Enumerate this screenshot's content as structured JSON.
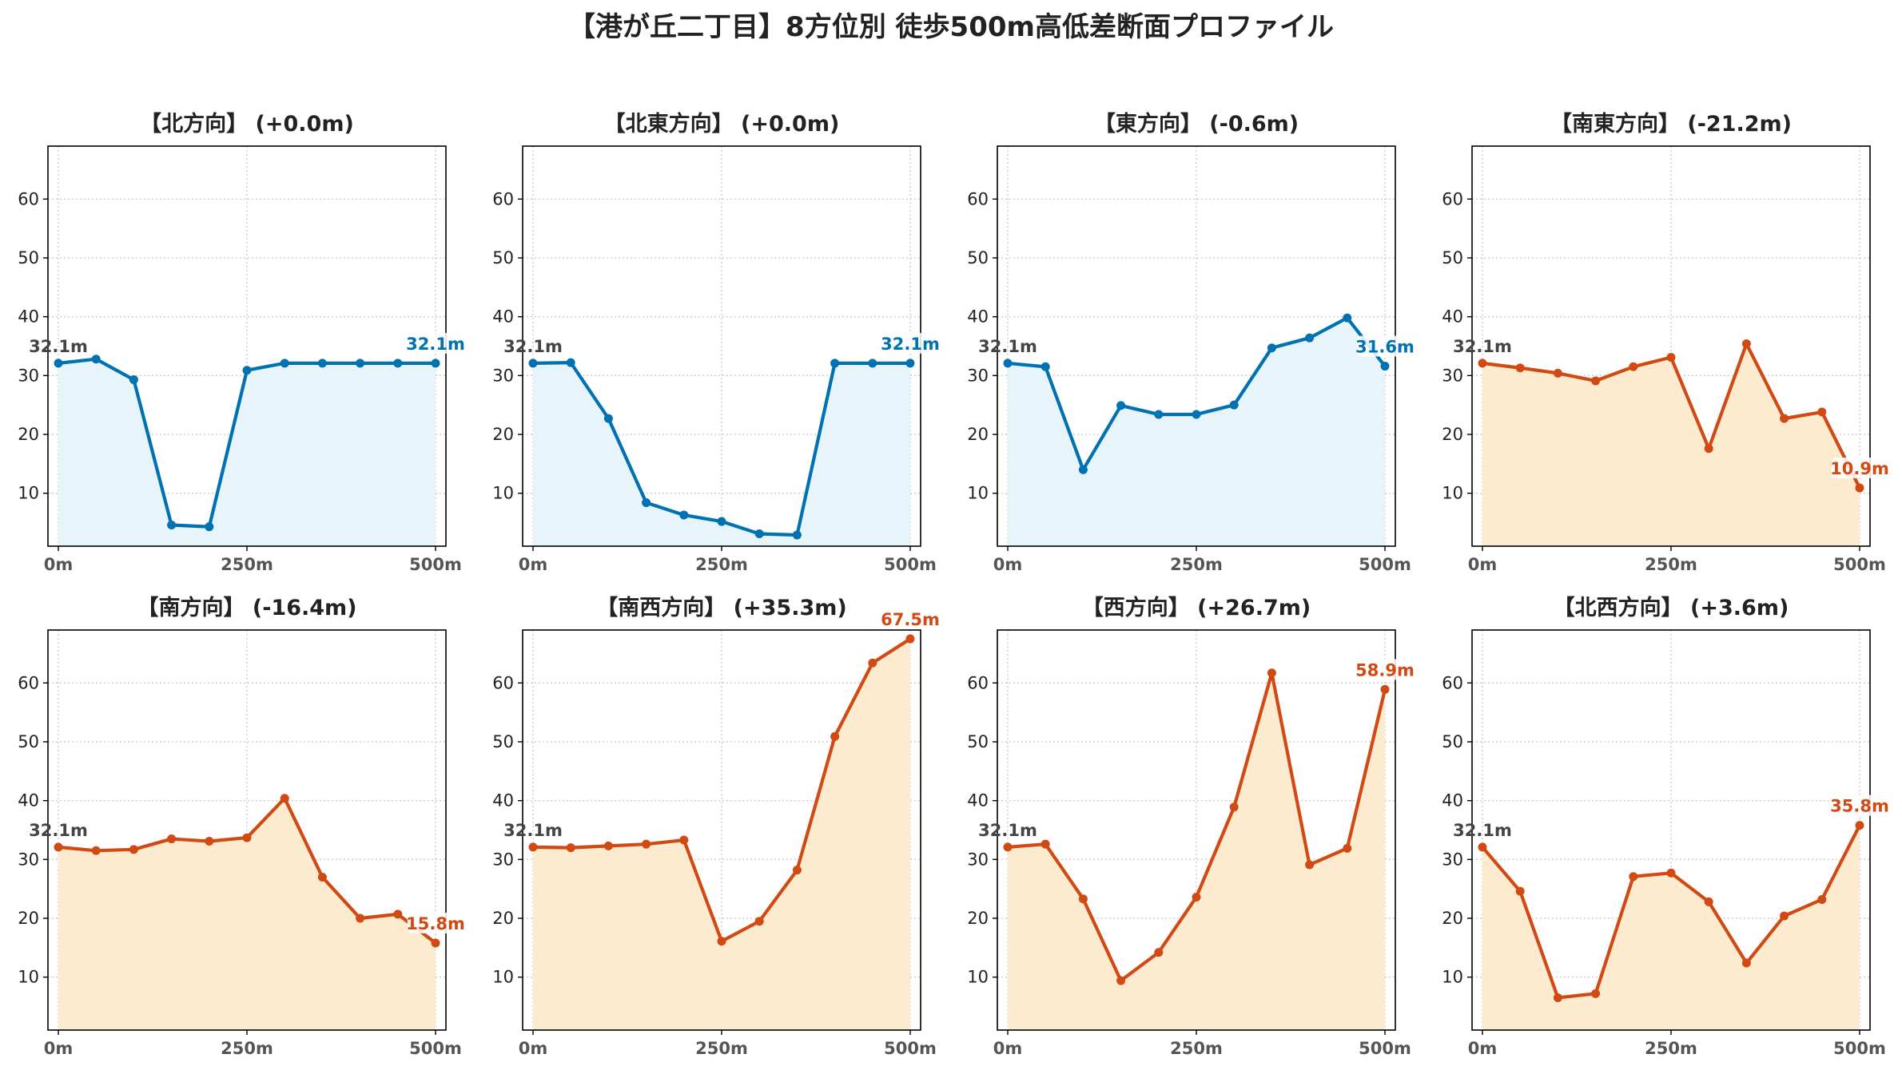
{
  "title": "【港が丘二丁目】8方位別 徒歩500m高低差断面プロファイル",
  "colors": {
    "up_line": "#0072b2",
    "up_fill": "#e7f5fb",
    "down_line": "#d14a14",
    "down_fill": "#fdebd0"
  },
  "chart_data": [
    {
      "type": "area",
      "title": "【北方向】 (+0.0m)",
      "color": "up",
      "x": [
        0,
        50,
        100,
        150,
        200,
        250,
        300,
        350,
        400,
        450,
        500
      ],
      "y": [
        32.1,
        32.8,
        29.3,
        4.6,
        4.3,
        30.9,
        32.1,
        32.1,
        32.1,
        32.1,
        32.1
      ],
      "start_label": "32.1m",
      "end_label": "32.1m",
      "x_ticks": [
        "0m",
        "250m",
        "500m"
      ],
      "y_ticks": [
        10,
        20,
        30,
        40,
        50,
        60
      ],
      "ylim": [
        1,
        69
      ],
      "grid": true
    },
    {
      "type": "area",
      "title": "【北東方向】 (+0.0m)",
      "color": "up",
      "x": [
        0,
        50,
        100,
        150,
        200,
        250,
        300,
        350,
        400,
        450,
        500
      ],
      "y": [
        32.1,
        32.2,
        22.7,
        8.4,
        6.3,
        5.2,
        3.1,
        2.9,
        32.1,
        32.1,
        32.1
      ],
      "start_label": "32.1m",
      "end_label": "32.1m",
      "x_ticks": [
        "0m",
        "250m",
        "500m"
      ],
      "y_ticks": [
        10,
        20,
        30,
        40,
        50,
        60
      ],
      "ylim": [
        1,
        69
      ],
      "grid": true
    },
    {
      "type": "area",
      "title": "【東方向】 (-0.6m)",
      "color": "up",
      "x": [
        0,
        50,
        100,
        150,
        200,
        250,
        300,
        350,
        400,
        450,
        500
      ],
      "y": [
        32.1,
        31.5,
        14.0,
        24.9,
        23.4,
        23.4,
        25.0,
        34.7,
        36.4,
        39.8,
        31.6
      ],
      "start_label": "32.1m",
      "end_label": "31.6m",
      "x_ticks": [
        "0m",
        "250m",
        "500m"
      ],
      "y_ticks": [
        10,
        20,
        30,
        40,
        50,
        60
      ],
      "ylim": [
        1,
        69
      ],
      "grid": true
    },
    {
      "type": "area",
      "title": "【南東方向】 (-21.2m)",
      "color": "down",
      "x": [
        0,
        50,
        100,
        150,
        200,
        250,
        300,
        350,
        400,
        450,
        500
      ],
      "y": [
        32.1,
        31.3,
        30.4,
        29.1,
        31.5,
        33.1,
        17.6,
        35.4,
        22.7,
        23.8,
        10.9
      ],
      "start_label": "32.1m",
      "end_label": "10.9m",
      "x_ticks": [
        "0m",
        "250m",
        "500m"
      ],
      "y_ticks": [
        10,
        20,
        30,
        40,
        50,
        60
      ],
      "ylim": [
        1,
        69
      ],
      "grid": true
    },
    {
      "type": "area",
      "title": "【南方向】 (-16.4m)",
      "color": "down",
      "x": [
        0,
        50,
        100,
        150,
        200,
        250,
        300,
        350,
        400,
        450,
        500
      ],
      "y": [
        32.1,
        31.5,
        31.7,
        33.5,
        33.1,
        33.7,
        40.4,
        27.0,
        20.0,
        20.7,
        15.8
      ],
      "start_label": "32.1m",
      "end_label": "15.8m",
      "x_ticks": [
        "0m",
        "250m",
        "500m"
      ],
      "y_ticks": [
        10,
        20,
        30,
        40,
        50,
        60
      ],
      "ylim": [
        1,
        69
      ],
      "grid": true
    },
    {
      "type": "area",
      "title": "【南西方向】 (+35.3m)",
      "color": "down",
      "x": [
        0,
        50,
        100,
        150,
        200,
        250,
        300,
        350,
        400,
        450,
        500
      ],
      "y": [
        32.1,
        32.0,
        32.3,
        32.6,
        33.3,
        16.1,
        19.5,
        28.2,
        50.9,
        63.4,
        67.5
      ],
      "start_label": "32.1m",
      "end_label": "67.5m",
      "x_ticks": [
        "0m",
        "250m",
        "500m"
      ],
      "y_ticks": [
        10,
        20,
        30,
        40,
        50,
        60
      ],
      "ylim": [
        1,
        69
      ],
      "grid": true
    },
    {
      "type": "area",
      "title": "【西方向】 (+26.7m)",
      "color": "down",
      "x": [
        0,
        50,
        100,
        150,
        200,
        250,
        300,
        350,
        400,
        450,
        500
      ],
      "y": [
        32.1,
        32.6,
        23.3,
        9.4,
        14.2,
        23.6,
        38.9,
        61.7,
        29.1,
        31.9,
        58.9
      ],
      "start_label": "32.1m",
      "end_label": "58.9m",
      "x_ticks": [
        "0m",
        "250m",
        "500m"
      ],
      "y_ticks": [
        10,
        20,
        30,
        40,
        50,
        60
      ],
      "ylim": [
        1,
        69
      ],
      "grid": true
    },
    {
      "type": "area",
      "title": "【北西方向】 (+3.6m)",
      "color": "down",
      "x": [
        0,
        50,
        100,
        150,
        200,
        250,
        300,
        350,
        400,
        450,
        500
      ],
      "y": [
        32.1,
        24.6,
        6.5,
        7.2,
        27.1,
        27.7,
        22.8,
        12.4,
        20.4,
        23.2,
        35.8
      ],
      "start_label": "32.1m",
      "end_label": "35.8m",
      "x_ticks": [
        "0m",
        "250m",
        "500m"
      ],
      "y_ticks": [
        10,
        20,
        30,
        40,
        50,
        60
      ],
      "ylim": [
        1,
        69
      ],
      "grid": true
    }
  ]
}
